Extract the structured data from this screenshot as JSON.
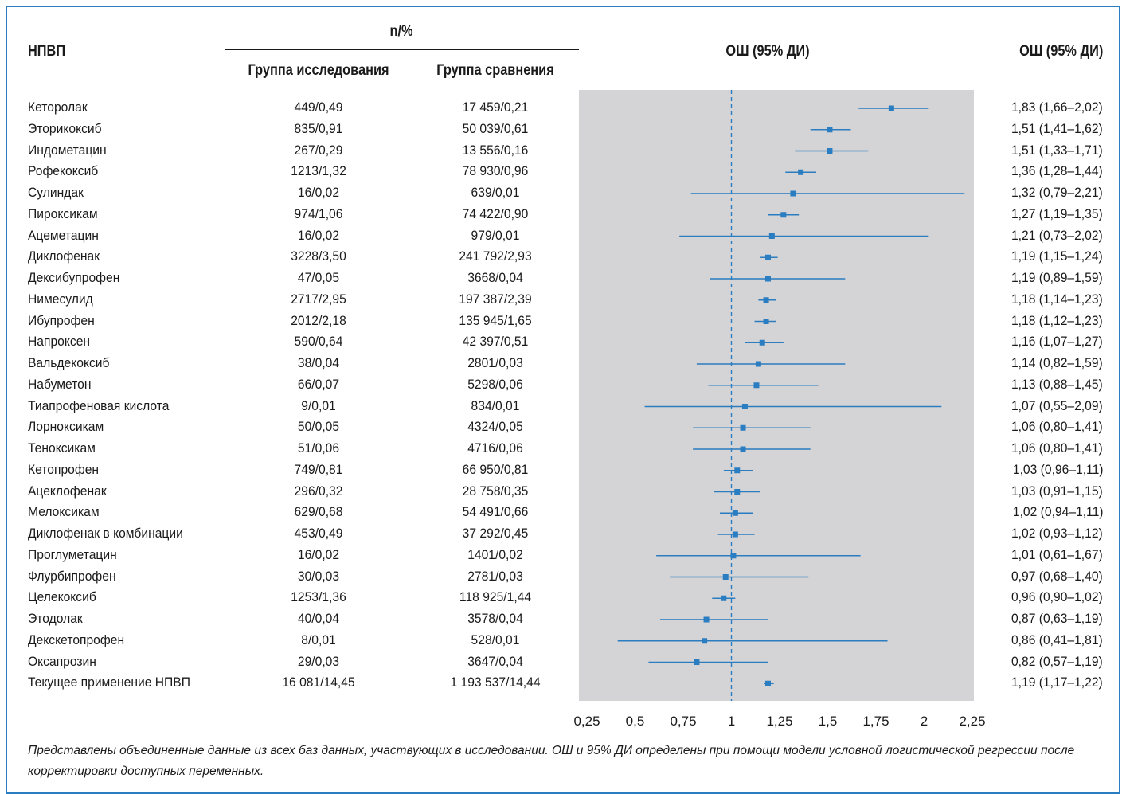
{
  "header": {
    "npvp_label": "НПВП",
    "np_label": "n/%",
    "col_study": "Группа исследования",
    "col_compare": "Группа сравнения",
    "or_title": "ОШ (95% ДИ)",
    "or_col_label": "ОШ (95% ДИ)"
  },
  "footnote": "Представлены объединенные данные из всех баз данных, участвующих в исследовании. ОШ и 95% ДИ определены при помощи модели условной логистической регрессии после корректировки доступных переменных.",
  "chart_data": {
    "type": "forest",
    "title": "",
    "xlim": [
      0.25,
      2.25
    ],
    "reference_line": 1,
    "xticks": [
      "0,25",
      "0,5",
      "0,75",
      "1",
      "1,25",
      "1,5",
      "1,75",
      "2",
      "2,25"
    ],
    "rows": [
      {
        "name": "Кеторолак",
        "study": "449/0,49",
        "compare": "17 459/0,21",
        "or_text": "1,83 (1,66–2,02)",
        "or": 1.83,
        "lo": 1.66,
        "hi": 2.02
      },
      {
        "name": "Эторикоксиб",
        "study": "835/0,91",
        "compare": "50 039/0,61",
        "or_text": "1,51 (1,41–1,62)",
        "or": 1.51,
        "lo": 1.41,
        "hi": 1.62
      },
      {
        "name": "Индометацин",
        "study": "267/0,29",
        "compare": "13 556/0,16",
        "or_text": "1,51 (1,33–1,71)",
        "or": 1.51,
        "lo": 1.33,
        "hi": 1.71
      },
      {
        "name": "Рофекоксиб",
        "study": "1213/1,32",
        "compare": "78 930/0,96",
        "or_text": "1,36 (1,28–1,44)",
        "or": 1.36,
        "lo": 1.28,
        "hi": 1.44
      },
      {
        "name": "Сулиндак",
        "study": "16/0,02",
        "compare": "639/0,01",
        "or_text": "1,32 (0,79–2,21)",
        "or": 1.32,
        "lo": 0.79,
        "hi": 2.21
      },
      {
        "name": "Пироксикам",
        "study": "974/1,06",
        "compare": "74 422/0,90",
        "or_text": "1,27 (1,19–1,35)",
        "or": 1.27,
        "lo": 1.19,
        "hi": 1.35
      },
      {
        "name": "Ацеметацин",
        "study": "16/0,02",
        "compare": "979/0,01",
        "or_text": "1,21 (0,73–2,02)",
        "or": 1.21,
        "lo": 0.73,
        "hi": 2.02
      },
      {
        "name": "Диклофенак",
        "study": "3228/3,50",
        "compare": "241 792/2,93",
        "or_text": "1,19 (1,15–1,24)",
        "or": 1.19,
        "lo": 1.15,
        "hi": 1.24
      },
      {
        "name": "Дексибупрофен",
        "study": "47/0,05",
        "compare": "3668/0,04",
        "or_text": "1,19 (0,89–1,59)",
        "or": 1.19,
        "lo": 0.89,
        "hi": 1.59
      },
      {
        "name": "Нимесулид",
        "study": "2717/2,95",
        "compare": "197 387/2,39",
        "or_text": "1,18 (1,14–1,23)",
        "or": 1.18,
        "lo": 1.14,
        "hi": 1.23
      },
      {
        "name": "Ибупрофен",
        "study": "2012/2,18",
        "compare": "135 945/1,65",
        "or_text": "1,18 (1,12–1,23)",
        "or": 1.18,
        "lo": 1.12,
        "hi": 1.23
      },
      {
        "name": "Напроксен",
        "study": "590/0,64",
        "compare": "42 397/0,51",
        "or_text": "1,16 (1,07–1,27)",
        "or": 1.16,
        "lo": 1.07,
        "hi": 1.27
      },
      {
        "name": "Вальдекоксиб",
        "study": "38/0,04",
        "compare": "2801/0,03",
        "or_text": "1,14 (0,82–1,59)",
        "or": 1.14,
        "lo": 0.82,
        "hi": 1.59
      },
      {
        "name": "Набуметон",
        "study": "66/0,07",
        "compare": "5298/0,06",
        "or_text": "1,13 (0,88–1,45)",
        "or": 1.13,
        "lo": 0.88,
        "hi": 1.45
      },
      {
        "name": "Тиапрофеновая кислота",
        "study": "9/0,01",
        "compare": "834/0,01",
        "or_text": "1,07 (0,55–2,09)",
        "or": 1.07,
        "lo": 0.55,
        "hi": 2.09
      },
      {
        "name": "Лорноксикам",
        "study": "50/0,05",
        "compare": "4324/0,05",
        "or_text": "1,06 (0,80–1,41)",
        "or": 1.06,
        "lo": 0.8,
        "hi": 1.41
      },
      {
        "name": "Теноксикам",
        "study": "51/0,06",
        "compare": "4716/0,06",
        "or_text": "1,06 (0,80–1,41)",
        "or": 1.06,
        "lo": 0.8,
        "hi": 1.41
      },
      {
        "name": "Кетопрофен",
        "study": "749/0,81",
        "compare": "66 950/0,81",
        "or_text": "1,03 (0,96–1,11)",
        "or": 1.03,
        "lo": 0.96,
        "hi": 1.11
      },
      {
        "name": "Ацеклофенак",
        "study": "296/0,32",
        "compare": "28 758/0,35",
        "or_text": "1,03 (0,91–1,15)",
        "or": 1.03,
        "lo": 0.91,
        "hi": 1.15
      },
      {
        "name": "Мелоксикам",
        "study": "629/0,68",
        "compare": "54 491/0,66",
        "or_text": "1,02 (0,94–1,11)",
        "or": 1.02,
        "lo": 0.94,
        "hi": 1.11
      },
      {
        "name": "Диклофенак в комбинации",
        "study": "453/0,49",
        "compare": "37 292/0,45",
        "or_text": "1,02 (0,93–1,12)",
        "or": 1.02,
        "lo": 0.93,
        "hi": 1.12
      },
      {
        "name": "Проглуметацин",
        "study": "16/0,02",
        "compare": "1401/0,02",
        "or_text": "1,01 (0,61–1,67)",
        "or": 1.01,
        "lo": 0.61,
        "hi": 1.67
      },
      {
        "name": "Флурбипрофен",
        "study": "30/0,03",
        "compare": "2781/0,03",
        "or_text": "0,97 (0,68–1,40)",
        "or": 0.97,
        "lo": 0.68,
        "hi": 1.4
      },
      {
        "name": "Целекоксиб",
        "study": "1253/1,36",
        "compare": "118 925/1,44",
        "or_text": "0,96 (0,90–1,02)",
        "or": 0.96,
        "lo": 0.9,
        "hi": 1.02
      },
      {
        "name": "Этодолак",
        "study": "40/0,04",
        "compare": "3578/0,04",
        "or_text": "0,87 (0,63–1,19)",
        "or": 0.87,
        "lo": 0.63,
        "hi": 1.19
      },
      {
        "name": "Декскетопрофен",
        "study": "8/0,01",
        "compare": "528/0,01",
        "or_text": "0,86 (0,41–1,81)",
        "or": 0.86,
        "lo": 0.41,
        "hi": 1.81
      },
      {
        "name": "Оксапрозин",
        "study": "29/0,03",
        "compare": "3647/0,04",
        "or_text": "0,82 (0,57–1,19)",
        "or": 0.82,
        "lo": 0.57,
        "hi": 1.19
      },
      {
        "name": "Текущее применение НПВП",
        "study": "16 081/14,45",
        "compare": "1 193 537/14,44",
        "or_text": "1,19 (1,17–1,22)",
        "or": 1.19,
        "lo": 1.17,
        "hi": 1.22
      }
    ],
    "colors": {
      "marker": "#2a7dc0",
      "plot_bg": "#d4d4d6",
      "frame": "#2a7dc0"
    }
  }
}
